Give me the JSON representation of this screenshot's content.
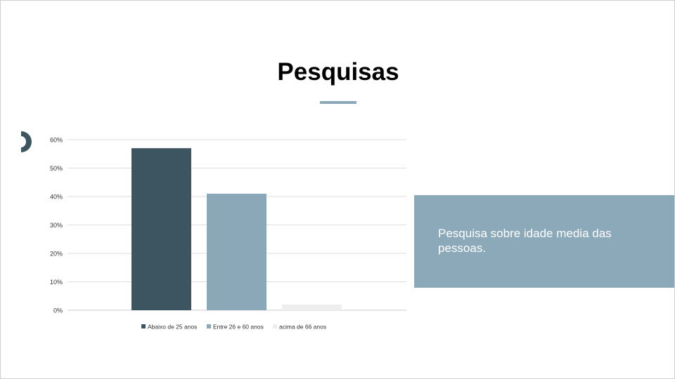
{
  "slide": {
    "title": "Pesquisas",
    "caption": "Pesquisa sobre idade media das pessoas."
  },
  "colors": {
    "accent": "#8aa8b8",
    "dark": "#3d5561",
    "light": "#eeeeee",
    "caption_bg": "#8ba9b8"
  },
  "chart_data": {
    "type": "bar",
    "title": "",
    "xlabel": "",
    "ylabel": "",
    "ylim": [
      0,
      60
    ],
    "yticks": [
      "0%",
      "10%",
      "20%",
      "30%",
      "40%",
      "50%",
      "60%"
    ],
    "grid": true,
    "legend_position": "bottom",
    "series": [
      {
        "name": "Abaixo de 25 anos",
        "value": 57,
        "color": "#3d5561"
      },
      {
        "name": "Entre 26 e 60 anos",
        "value": 41,
        "color": "#8aa8b8"
      },
      {
        "name": "acima de 66 anos",
        "value": 2,
        "color": "#eeeeee"
      }
    ]
  }
}
